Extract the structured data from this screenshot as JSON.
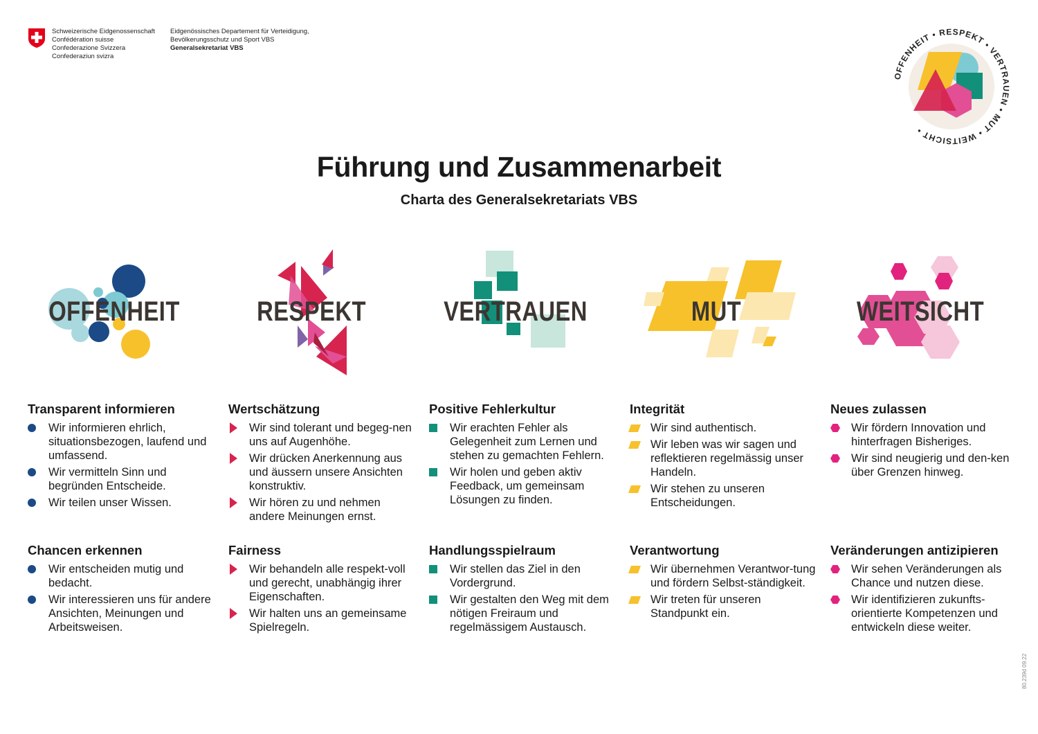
{
  "header": {
    "federal_lines": [
      "Schweizerische Eidgenossenschaft",
      "Confédération suisse",
      "Confederazione Svizzera",
      "Confederaziun svizra"
    ],
    "department_lines": [
      "Eidgenössisches Departement für Verteidigung,",
      "Bevölkerungsschutz und Sport VBS"
    ],
    "department_unit": "Generalsekretariat VBS",
    "badge_words": [
      "OFFENHEIT",
      "RESPEKT",
      "VERTRAUEN",
      "MUT",
      "WEITSICHT"
    ]
  },
  "title": "Führung und Zusammenarbeit",
  "subtitle": "Charta des Generalsekretariats VBS",
  "colors": {
    "offenheit": "#1b4a86",
    "respekt": "#d6244f",
    "vertrauen": "#12907a",
    "mut": "#f7c12c",
    "weitsicht": "#e2237d"
  },
  "values": [
    {
      "word": "OFFENHEIT",
      "marker": "dot",
      "blocks": [
        {
          "title": "Transparent informieren",
          "items": [
            "Wir informieren ehrlich, situationsbezogen, laufend und umfassend.",
            "Wir vermitteln Sinn und begründen Entscheide.",
            "Wir teilen unser Wissen."
          ]
        },
        {
          "title": "Chancen erkennen",
          "items": [
            "Wir entscheiden mutig und bedacht.",
            "Wir interessieren uns für andere Ansichten, Meinungen und Arbeitsweisen."
          ]
        }
      ]
    },
    {
      "word": "RESPEKT",
      "marker": "triangle",
      "blocks": [
        {
          "title": "Wertschätzung",
          "items": [
            "Wir sind tolerant und begeg-nen uns auf Augenhöhe.",
            "Wir drücken Anerkennung aus und äussern unsere Ansichten konstruktiv.",
            "Wir hören zu und nehmen andere Meinungen ernst."
          ]
        },
        {
          "title": "Fairness",
          "items": [
            "Wir behandeln alle respekt-voll und gerecht, unabhängig ihrer Eigenschaften.",
            "Wir halten uns an gemeinsame Spielregeln."
          ]
        }
      ]
    },
    {
      "word": "VERTRAUEN",
      "marker": "square",
      "blocks": [
        {
          "title": "Positive Fehlerkultur",
          "items": [
            "Wir erachten Fehler als Gelegenheit zum Lernen und stehen zu gemachten Fehlern.",
            "Wir holen und geben aktiv Feedback, um gemeinsam Lösungen zu finden."
          ]
        },
        {
          "title": "Handlungsspielraum",
          "items": [
            "Wir stellen das Ziel in den Vordergrund.",
            "Wir gestalten den Weg mit dem nötigen Freiraum und regelmässigem Austausch."
          ]
        }
      ]
    },
    {
      "word": "MUT",
      "marker": "parallelogram",
      "blocks": [
        {
          "title": "Integrität",
          "items": [
            "Wir sind authentisch.",
            "Wir leben was wir sagen und reflektieren regelmässig unser Handeln.",
            "Wir stehen zu unseren Entscheidungen."
          ]
        },
        {
          "title": "Verantwortung",
          "items": [
            "Wir übernehmen Verantwor-tung und fördern Selbst-ständigkeit.",
            "Wir treten für unseren Standpunkt ein."
          ]
        }
      ]
    },
    {
      "word": "WEITSICHT",
      "marker": "hexagon",
      "blocks": [
        {
          "title": "Neues zulassen",
          "items": [
            "Wir fördern Innovation und hinterfragen Bisheriges.",
            "Wir sind neugierig und den-ken über Grenzen hinweg."
          ]
        },
        {
          "title": "Veränderungen antizipieren",
          "items": [
            "Wir sehen Veränderungen als Chance und nutzen diese.",
            "Wir identifizieren zukunfts-orientierte Kompetenzen und entwickeln diese weiter."
          ]
        }
      ]
    }
  ],
  "footnote": "80.239d 09.22"
}
